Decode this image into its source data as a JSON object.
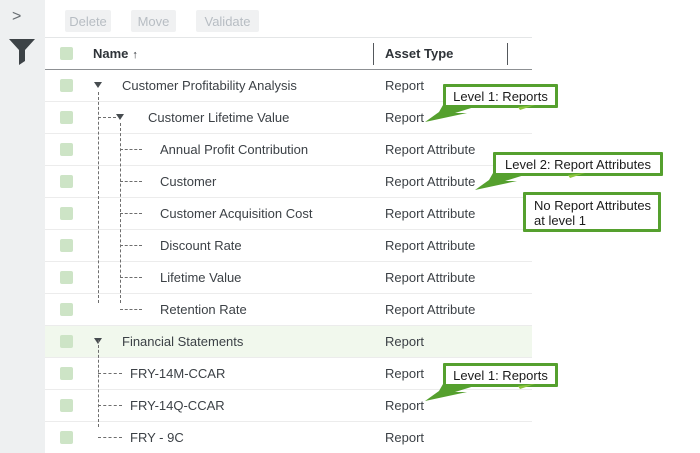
{
  "sidebar": {
    "collapse_glyph": ">",
    "icons": [
      "panel-expand-icon",
      "filter-funnel-icon"
    ]
  },
  "toolbar": {
    "buttons": [
      "Delete",
      "Move",
      "Validate"
    ]
  },
  "table": {
    "columns": [
      {
        "label": "Name",
        "sort_indicator": "↑"
      },
      {
        "label": "Asset Type"
      }
    ],
    "rows": [
      {
        "name": "Customer Profitability Analysis",
        "asset_type": "Report",
        "level": 1,
        "expander": true,
        "highlighted": false
      },
      {
        "name": "Customer Lifetime Value",
        "asset_type": "Report",
        "level": 2,
        "expander": true,
        "highlighted": false
      },
      {
        "name": "Annual Profit Contribution",
        "asset_type": "Report Attribute",
        "level": 3,
        "expander": false,
        "highlighted": false
      },
      {
        "name": "Customer",
        "asset_type": "Report Attribute",
        "level": 3,
        "expander": false,
        "highlighted": false
      },
      {
        "name": "Customer Acquisition Cost",
        "asset_type": "Report Attribute",
        "level": 3,
        "expander": false,
        "highlighted": false
      },
      {
        "name": "Discount Rate",
        "asset_type": "Report Attribute",
        "level": 3,
        "expander": false,
        "highlighted": false
      },
      {
        "name": "Lifetime Value",
        "asset_type": "Report Attribute",
        "level": 3,
        "expander": false,
        "highlighted": false
      },
      {
        "name": "Retention Rate",
        "asset_type": "Report Attribute",
        "level": 3,
        "expander": false,
        "highlighted": false
      },
      {
        "name": "Financial Statements",
        "asset_type": "Report",
        "level": 1,
        "expander": true,
        "highlighted": true
      },
      {
        "name": "FRY-14M-CCAR",
        "asset_type": "Report",
        "level": 2,
        "expander": false,
        "highlighted": false
      },
      {
        "name": "FRY-14Q-CCAR",
        "asset_type": "Report",
        "level": 2,
        "expander": false,
        "highlighted": false
      },
      {
        "name": "FRY - 9C",
        "asset_type": "Report",
        "level": 2,
        "expander": false,
        "highlighted": false
      }
    ]
  },
  "callouts": [
    {
      "id": "callout-level1-reports-top",
      "lines": [
        "Level 1: Reports"
      ]
    },
    {
      "id": "callout-level2-report-attrs",
      "lines": [
        "Level 2: Report Attributes"
      ]
    },
    {
      "id": "callout-no-report-attrs",
      "lines": [
        "No Report Attributes",
        "at level 1"
      ]
    },
    {
      "id": "callout-level1-reports-bottom",
      "lines": [
        "Level 1: Reports"
      ]
    }
  ],
  "colors": {
    "accent_green": "#55a02e",
    "checkbox_green": "#cde4c6",
    "row_highlight": "#f1f8ed",
    "sidebar_bg": "#eef0f1",
    "header_border": "#8d9093",
    "button_bg": "#f0f1f2",
    "button_fg": "#b7bdc3"
  }
}
